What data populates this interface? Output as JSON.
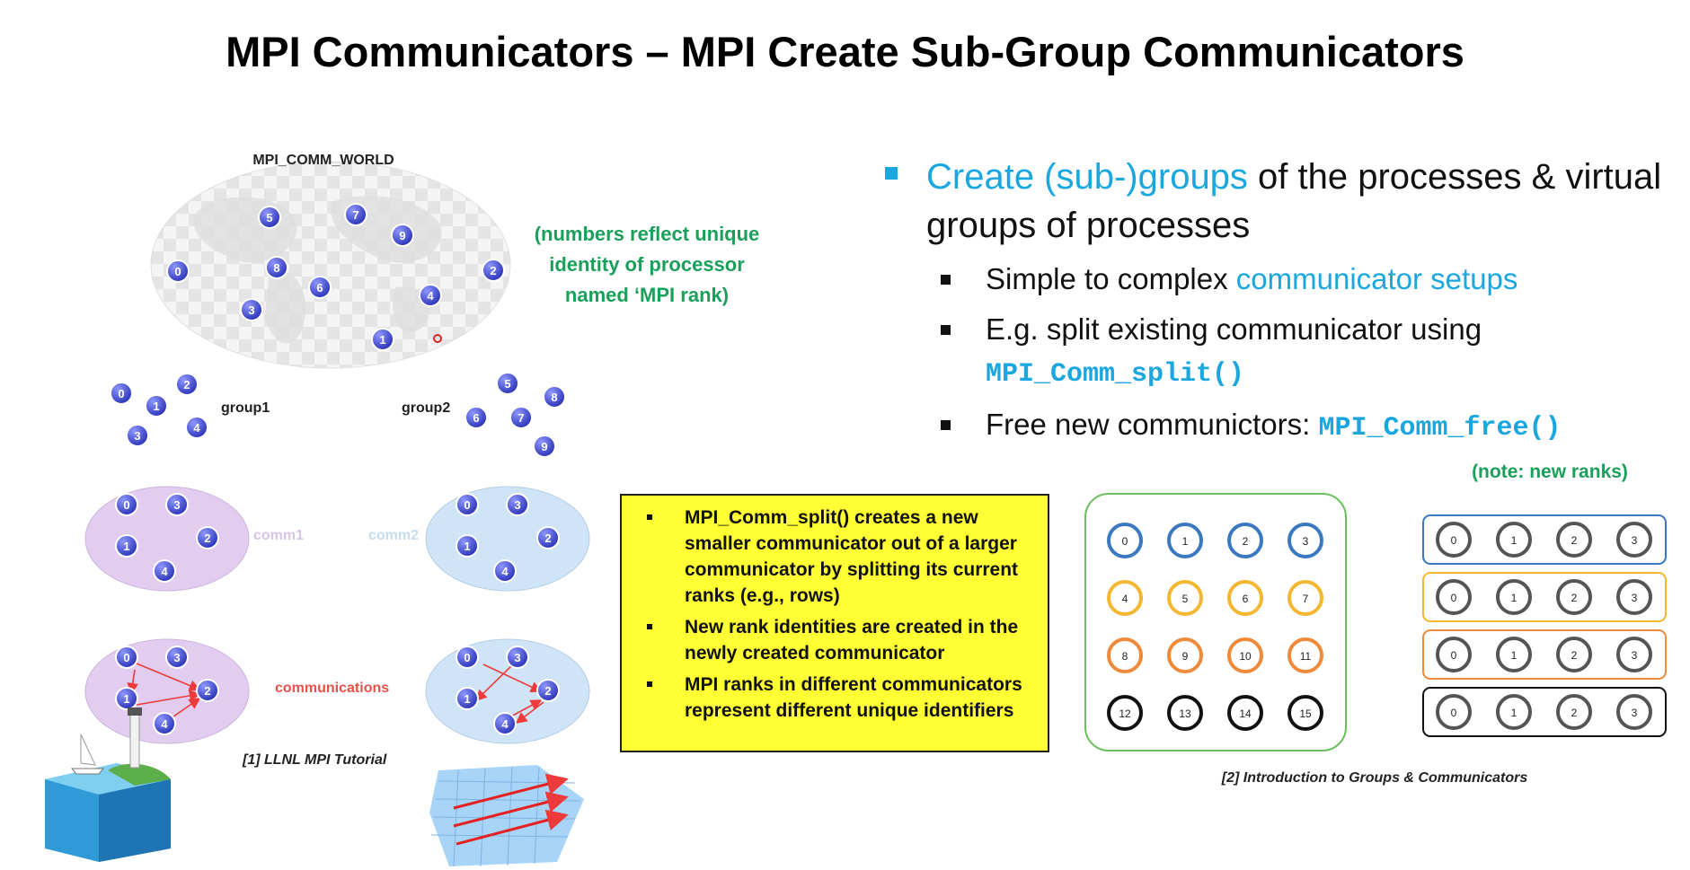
{
  "title": "MPI Communicators – MPI Create Sub-Group Communicators",
  "colors": {
    "accent": "#1aa7e0",
    "note_green": "#1aa05a",
    "comm1_fill": "#e2cdf0",
    "comm2_fill": "#cfe5f7",
    "node_fill": "#4a55d6",
    "arrow": "#ee3a3a",
    "note_box": "#ffff33",
    "row_colors": [
      "#3a78c0",
      "#f3b731",
      "#ee8a3a",
      "#111111"
    ],
    "grid_border": "#6bbf5e"
  },
  "world": {
    "label": "MPI_COMM_WORLD",
    "note": "(numbers reflect unique identity of processor named ‘MPI rank)",
    "ranks": [
      "5",
      "7",
      "9",
      "0",
      "8",
      "6",
      "2",
      "3",
      "4",
      "1"
    ]
  },
  "groups": {
    "group1": {
      "label": "group1",
      "ranks": [
        "0",
        "2",
        "1",
        "3",
        "4"
      ]
    },
    "group2": {
      "label": "group2",
      "ranks": [
        "5",
        "8",
        "6",
        "7",
        "9"
      ]
    }
  },
  "comms": {
    "comm1": {
      "label": "comm1",
      "ranks": [
        "0",
        "3",
        "1",
        "2",
        "4"
      ]
    },
    "comm2": {
      "label": "comm2",
      "ranks": [
        "0",
        "3",
        "1",
        "2",
        "4"
      ]
    },
    "communications_label": "communications"
  },
  "citations": {
    "llnl": "[1] LLNL MPI Tutorial",
    "groups": "[2] Introduction to Groups & Communicators"
  },
  "bullets": {
    "main": {
      "highlight": "Create (sub-)groups",
      "rest": " of the processes & virtual groups of processes"
    },
    "sub": [
      {
        "text": "Simple to complex ",
        "accent": "communicator setups",
        "code": ""
      },
      {
        "text": "E.g. split existing communicator using ",
        "accent": "",
        "code": "MPI_Comm_split()"
      },
      {
        "text": "Free new communictors: ",
        "accent": "",
        "code": "MPI_Comm_free()"
      }
    ]
  },
  "note_box": {
    "items": [
      "MPI_Comm_split() creates a new smaller communicator out of a larger communicator by splitting its current ranks (e.g., rows)",
      "New rank identities are created in the newly created communicator",
      "MPI ranks in different communicators represent different unique identifiers"
    ]
  },
  "split": {
    "new_ranks_label": "(note: new ranks)",
    "grid_rows": [
      [
        "0",
        "1",
        "2",
        "3"
      ],
      [
        "4",
        "5",
        "6",
        "7"
      ],
      [
        "8",
        "9",
        "10",
        "11"
      ],
      [
        "12",
        "13",
        "14",
        "15"
      ]
    ],
    "new_rows": [
      [
        "0",
        "1",
        "2",
        "3"
      ],
      [
        "0",
        "1",
        "2",
        "3"
      ],
      [
        "0",
        "1",
        "2",
        "3"
      ],
      [
        "0",
        "1",
        "2",
        "3"
      ]
    ]
  }
}
